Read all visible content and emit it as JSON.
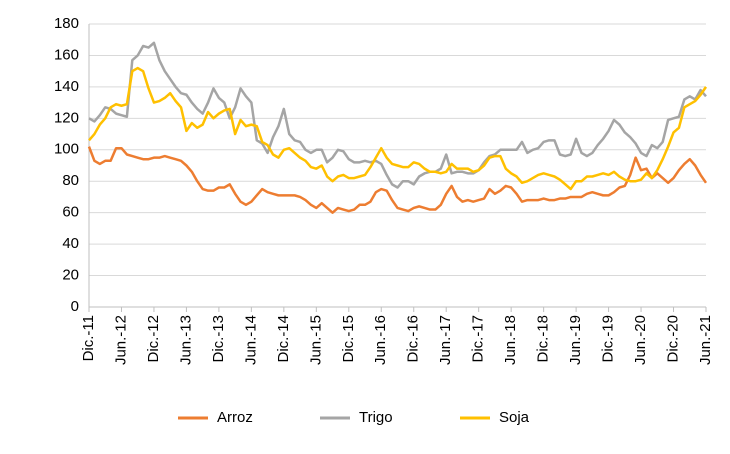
{
  "chart_data": {
    "type": "line",
    "categories": [
      "Dic.-11",
      null,
      null,
      null,
      null,
      null,
      "Jun.-12",
      null,
      null,
      null,
      null,
      null,
      "Dic.-12",
      null,
      null,
      null,
      null,
      null,
      "Jun.-13",
      null,
      null,
      null,
      null,
      null,
      "Dic.-13",
      null,
      null,
      null,
      null,
      null,
      "Jun.-14",
      null,
      null,
      null,
      null,
      null,
      "Dic.-14",
      null,
      null,
      null,
      null,
      null,
      "Jun.-15",
      null,
      null,
      null,
      null,
      null,
      "Dic.-15",
      null,
      null,
      null,
      null,
      null,
      "Jun.-16",
      null,
      null,
      null,
      null,
      null,
      "Dic.-16",
      null,
      null,
      null,
      null,
      null,
      "Jun.-17",
      null,
      null,
      null,
      null,
      null,
      "Dic.-17",
      null,
      null,
      null,
      null,
      null,
      "Jun.-18",
      null,
      null,
      null,
      null,
      null,
      "Dic.-18",
      null,
      null,
      null,
      null,
      null,
      "Jun.-19",
      null,
      null,
      null,
      null,
      null,
      "Dic.-19",
      null,
      null,
      null,
      null,
      null,
      "Jun.-20",
      null,
      null,
      null,
      null,
      null,
      "Dic.-20",
      null,
      null,
      null,
      null,
      null,
      "Jun.-21"
    ],
    "series": [
      {
        "name": "Arroz",
        "color": "#ed7d31",
        "values": [
          102,
          93,
          91,
          93,
          93,
          101,
          101,
          97,
          96,
          95,
          94,
          94,
          95,
          95,
          96,
          95,
          94,
          93,
          90,
          86,
          80,
          75,
          74,
          74,
          76,
          76,
          78,
          72,
          67,
          65,
          67,
          71,
          75,
          73,
          72,
          71,
          71,
          71,
          71,
          70,
          68,
          65,
          63,
          66,
          63,
          60,
          63,
          62,
          61,
          62,
          65,
          65,
          67,
          73,
          75,
          74,
          68,
          63,
          62,
          61,
          63,
          64,
          63,
          62,
          62,
          65,
          72,
          77,
          70,
          67,
          68,
          67,
          68,
          69,
          75,
          72,
          74,
          77,
          76,
          72,
          67,
          68,
          68,
          68,
          69,
          68,
          68,
          69,
          69,
          70,
          70,
          70,
          72,
          73,
          72,
          71,
          71,
          73,
          76,
          77,
          84,
          95,
          87,
          88,
          82,
          85,
          82,
          79,
          82,
          87,
          91,
          94,
          90,
          84,
          79
        ]
      },
      {
        "name": "Trigo",
        "color": "#a5a5a5",
        "values": [
          120,
          118,
          122,
          127,
          126,
          123,
          122,
          121,
          157,
          160,
          166,
          165,
          168,
          157,
          150,
          145,
          140,
          136,
          135,
          130,
          126,
          123,
          130,
          139,
          133,
          130,
          120,
          127,
          139,
          134,
          130,
          106,
          104,
          98,
          108,
          115,
          126,
          110,
          106,
          105,
          100,
          98,
          100,
          100,
          92,
          95,
          100,
          99,
          94,
          92,
          92,
          93,
          92,
          93,
          91,
          84,
          78,
          76,
          80,
          80,
          78,
          83,
          85,
          86,
          86,
          88,
          97,
          85,
          86,
          86,
          85,
          85,
          87,
          92,
          96,
          97,
          100,
          100,
          100,
          100,
          105,
          98,
          100,
          101,
          105,
          106,
          106,
          97,
          96,
          97,
          107,
          98,
          96,
          98,
          103,
          107,
          112,
          119,
          116,
          111,
          108,
          104,
          98,
          96,
          103,
          101,
          105,
          119,
          120,
          121,
          132,
          134,
          132,
          138,
          134
        ]
      },
      {
        "name": "Soja",
        "color": "#ffc000",
        "values": [
          106,
          110,
          116,
          120,
          127,
          129,
          128,
          129,
          150,
          152,
          150,
          139,
          130,
          131,
          133,
          136,
          131,
          127,
          112,
          117,
          114,
          116,
          124,
          120,
          123,
          125,
          126,
          110,
          119,
          115,
          116,
          115,
          105,
          103,
          97,
          95,
          100,
          101,
          98,
          95,
          93,
          89,
          88,
          90,
          83,
          80,
          83,
          84,
          82,
          82,
          83,
          84,
          89,
          95,
          101,
          95,
          91,
          90,
          89,
          89,
          92,
          91,
          88,
          86,
          86,
          85,
          86,
          91,
          88,
          88,
          88,
          86,
          87,
          90,
          95,
          96,
          96,
          88,
          85,
          83,
          79,
          80,
          82,
          84,
          85,
          84,
          83,
          81,
          78,
          75,
          80,
          80,
          83,
          83,
          84,
          85,
          84,
          86,
          83,
          81,
          80,
          80,
          81,
          85,
          82,
          87,
          94,
          102,
          111,
          114,
          127,
          129,
          131,
          135,
          140
        ]
      }
    ],
    "ylim": [
      0,
      180
    ],
    "yticks": [
      0,
      20,
      40,
      60,
      80,
      100,
      120,
      140,
      160,
      180
    ],
    "grid": true,
    "legend": "bottom"
  }
}
